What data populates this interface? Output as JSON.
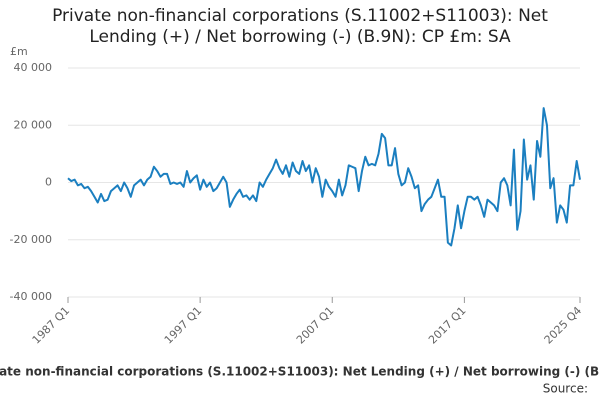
{
  "chart_data": {
    "type": "line",
    "title": "Private non-financial corporations (S.11002+S11003): Net Lending (+) / Net borrowing (-) (B.9N): CP £m: SA",
    "y_label": "£m",
    "source": "Source:",
    "categories": [
      "1987 Q1",
      null,
      null,
      null,
      null,
      null,
      null,
      null,
      null,
      null,
      null,
      null,
      null,
      null,
      null,
      null,
      null,
      null,
      null,
      null,
      null,
      null,
      null,
      null,
      null,
      null,
      null,
      null,
      null,
      null,
      null,
      null,
      null,
      null,
      null,
      null,
      null,
      null,
      null,
      null,
      "1997 Q1",
      null,
      null,
      null,
      null,
      null,
      null,
      null,
      null,
      null,
      null,
      null,
      null,
      null,
      null,
      null,
      null,
      null,
      null,
      null,
      null,
      null,
      null,
      null,
      null,
      null,
      null,
      null,
      null,
      null,
      null,
      null,
      null,
      null,
      null,
      null,
      null,
      null,
      null,
      null,
      "2007 Q1",
      null,
      null,
      null,
      null,
      null,
      null,
      null,
      null,
      null,
      null,
      null,
      null,
      null,
      null,
      null,
      null,
      null,
      null,
      null,
      null,
      null,
      null,
      null,
      null,
      null,
      null,
      null,
      null,
      null,
      null,
      null,
      null,
      null,
      null,
      null,
      null,
      null,
      null,
      null,
      "2017 Q1",
      null,
      null,
      null,
      null,
      null,
      null,
      null,
      null,
      null,
      null,
      null,
      null,
      null,
      null,
      null,
      null,
      null,
      null,
      null,
      null,
      null,
      null,
      null,
      null,
      null,
      null,
      null,
      null,
      null,
      null,
      null,
      null,
      null,
      null,
      "2025 Q4"
    ],
    "series": [
      {
        "name": "Private non-financial corporations (S.11002+S11003): Net Lending (+) / Net borrowing (-) (B.9N)",
        "color": "#1b7fc0",
        "values": [
          1500,
          500,
          1000,
          -1000,
          -500,
          -2000,
          -1500,
          -3000,
          -5000,
          -7000,
          -4000,
          -6500,
          -6000,
          -3000,
          -2000,
          -1000,
          -3000,
          0,
          -2000,
          -5000,
          -1000,
          0,
          1000,
          -1000,
          1000,
          2000,
          5500,
          4000,
          2000,
          3000,
          3000,
          -500,
          0,
          -500,
          0,
          -1500,
          4000,
          0,
          1500,
          2500,
          -2500,
          1000,
          -1500,
          0,
          -3000,
          -2000,
          0,
          2000,
          0,
          -8500,
          -6000,
          -4000,
          -2500,
          -5000,
          -4500,
          -6000,
          -4500,
          -6500,
          0,
          -1500,
          1000,
          3000,
          5000,
          8000,
          5000,
          3000,
          6000,
          2000,
          7000,
          4000,
          3000,
          7500,
          4000,
          6000,
          0,
          5000,
          2000,
          -5000,
          1000,
          -1500,
          -3000,
          -5000,
          1000,
          -4500,
          -1000,
          6000,
          5500,
          5000,
          -3000,
          4000,
          9000,
          6000,
          6500,
          6000,
          10000,
          17000,
          15500,
          6000,
          6000,
          12000,
          3000,
          -1000,
          0,
          5000,
          2000,
          -2000,
          -1000,
          -10000,
          -7500,
          -6000,
          -5000,
          -2000,
          1000,
          -5000,
          -5000,
          -21000,
          -22000,
          -16000,
          -8000,
          -16000,
          -10000,
          -5000,
          -5000,
          -6000,
          -5000,
          -8000,
          -12000,
          -6000,
          -7000,
          -8000,
          -10000,
          0,
          1500,
          -1000,
          -8000,
          11500,
          -16500,
          -10000,
          15000,
          1000,
          6000,
          -6000,
          14500,
          9000,
          26000,
          20000,
          -2000,
          1500,
          -14000,
          -8000,
          -9500,
          -14000,
          -1000,
          -1000,
          7500,
          1000
        ]
      }
    ],
    "ylim": [
      -40000,
      40000
    ],
    "yticks": [
      {
        "value": -40000,
        "label": "-40 000"
      },
      {
        "value": -20000,
        "label": "-20 000"
      },
      0,
      {
        "value": 20000,
        "label": "20 000"
      },
      {
        "value": 40000,
        "label": "40 000"
      }
    ],
    "grid": true
  }
}
